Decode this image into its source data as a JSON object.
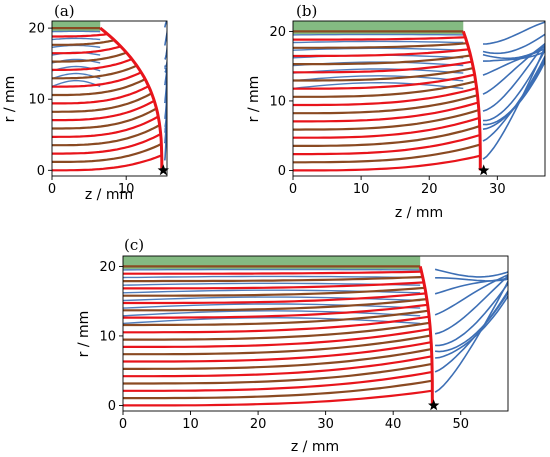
{
  "colors": {
    "blue_stream": "#3d6fb5",
    "red_stream": "#e8141b",
    "brown_stream": "#8a4a22",
    "green_band": "#6fae6c",
    "star": "#000000"
  },
  "chart_data": [
    {
      "type": "line",
      "panel_label": "(a)",
      "xlabel": "z / mm",
      "ylabel": "r / mm",
      "xlim": [
        0,
        15.5
      ],
      "ylim": [
        -0.8,
        21
      ],
      "xticks": [
        0,
        10
      ],
      "yticks": [
        0,
        10,
        20
      ],
      "front_end": [
        14.8,
        0
      ],
      "front_top_z": 6.5,
      "jet_line_count": 18,
      "outer_line_count": 14,
      "marker": {
        "shape": "star",
        "x": 15,
        "y": 0
      }
    },
    {
      "type": "line",
      "panel_label": "(b)",
      "xlabel": "z / mm",
      "ylabel": "r / mm",
      "xlim": [
        0,
        37
      ],
      "ylim": [
        -0.8,
        21.5
      ],
      "xticks": [
        0,
        10,
        20,
        30
      ],
      "yticks": [
        0,
        10,
        20
      ],
      "front_end": [
        27.5,
        0
      ],
      "front_top_z": 25,
      "jet_line_count": 18,
      "outer_line_count": 12,
      "marker": {
        "shape": "star",
        "x": 28,
        "y": 0
      }
    },
    {
      "type": "line",
      "panel_label": "(c)",
      "xlabel": "z / mm",
      "ylabel": "r / mm",
      "xlim": [
        0,
        57
      ],
      "ylim": [
        -0.8,
        21.5
      ],
      "xticks": [
        0,
        10,
        20,
        30,
        40,
        50
      ],
      "yticks": [
        0,
        10,
        20
      ],
      "front_end": [
        45.8,
        0
      ],
      "front_top_z": 44,
      "jet_line_count": 20,
      "outer_line_count": 10,
      "marker": {
        "shape": "star",
        "x": 46,
        "y": 0
      }
    }
  ]
}
